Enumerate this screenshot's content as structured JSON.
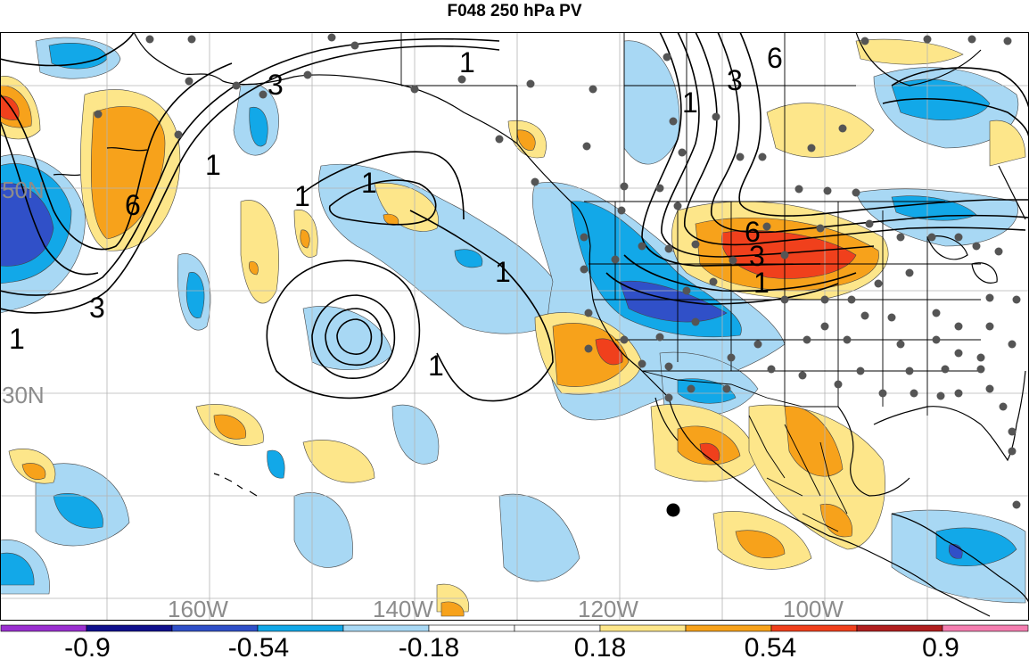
{
  "title": "F048 250 hPa PV",
  "latitude_labels": [
    "50N",
    "30N"
  ],
  "longitude_labels": [
    "160W",
    "140W",
    "120W",
    "100W"
  ],
  "contour_labels": [
    "1",
    "3",
    "6"
  ],
  "colorbar": {
    "tick_labels": [
      "-0.9",
      "-0.54",
      "-0.18",
      "0.18",
      "0.54",
      "0.9"
    ],
    "colors": [
      "#9b30d0",
      "#10108c",
      "#3050c8",
      "#12a8e8",
      "#a8d8f4",
      "#ffffff",
      "#ffffff",
      "#fde68a",
      "#f7a21b",
      "#f0401c",
      "#b01e1e",
      "#f47eb0"
    ]
  },
  "map_colors": {
    "land_outline": "#000000",
    "graticule": "#b4b4b4",
    "stations": "#555555",
    "neg_weak": "#a8d8f4",
    "neg_mid": "#12a8e8",
    "neg_strong": "#3050c8",
    "pos_weak": "#fde68a",
    "pos_mid": "#f7a21b",
    "pos_strong": "#f0401c"
  }
}
